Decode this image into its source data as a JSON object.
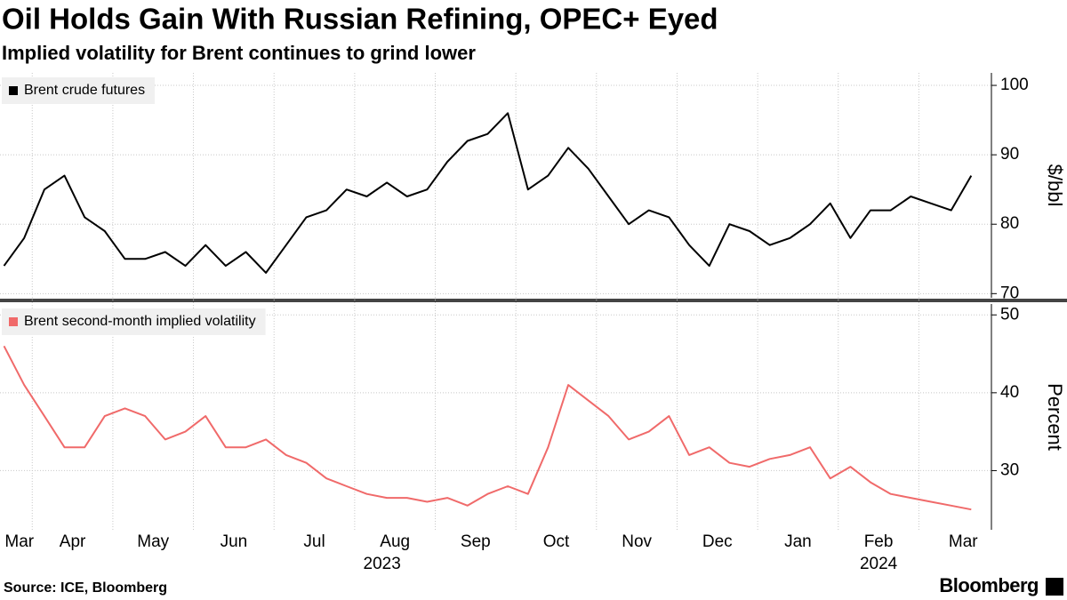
{
  "title": "Oil Holds Gain With Russian Refining, OPEC+ Eyed",
  "subtitle": "Implied volatility for Brent continues to grind lower",
  "source": "Source: ICE, Bloomberg",
  "brand": "Bloomberg",
  "x_axis": {
    "xlim": [
      0.6,
      12.9
    ],
    "xticks": [
      {
        "value": 0.84,
        "label": "Mar"
      },
      {
        "value": 1.5,
        "label": "Apr"
      },
      {
        "value": 2.5,
        "label": "May"
      },
      {
        "value": 3.5,
        "label": "Jun"
      },
      {
        "value": 4.5,
        "label": "Jul"
      },
      {
        "value": 5.5,
        "label": "Aug"
      },
      {
        "value": 6.5,
        "label": "Sep"
      },
      {
        "value": 7.5,
        "label": "Oct"
      },
      {
        "value": 8.5,
        "label": "Nov"
      },
      {
        "value": 9.5,
        "label": "Dec"
      },
      {
        "value": 10.5,
        "label": "Jan"
      },
      {
        "value": 11.5,
        "label": "Feb"
      },
      {
        "value": 12.55,
        "label": "Mar"
      }
    ],
    "years": [
      {
        "value": 5.34,
        "label": "2023"
      },
      {
        "value": 11.5,
        "label": "2024"
      }
    ],
    "xgrid": [
      1,
      2,
      3,
      4,
      5,
      6,
      7,
      8,
      9,
      10,
      11,
      12
    ]
  },
  "chart_data": [
    {
      "type": "line",
      "y_label": "$/bbl",
      "ylim": [
        69.4,
        101.8
      ],
      "yticks": [
        70,
        80,
        90,
        100
      ],
      "grid": true,
      "x": [
        0.65,
        0.9,
        1.15,
        1.4,
        1.65,
        1.9,
        2.15,
        2.4,
        2.65,
        2.9,
        3.15,
        3.4,
        3.65,
        3.9,
        4.15,
        4.4,
        4.65,
        4.9,
        5.15,
        5.4,
        5.65,
        5.9,
        6.15,
        6.4,
        6.65,
        6.9,
        7.15,
        7.4,
        7.65,
        7.9,
        8.15,
        8.4,
        8.65,
        8.9,
        9.15,
        9.4,
        9.65,
        9.9,
        10.15,
        10.4,
        10.65,
        10.9,
        11.15,
        11.4,
        11.65,
        11.9,
        12.15,
        12.4,
        12.65
      ],
      "series": [
        {
          "name": "Brent crude futures",
          "color": "#000000",
          "values": [
            74,
            78,
            85,
            87,
            81,
            79,
            75,
            75,
            76,
            74,
            77,
            74,
            76,
            73,
            77,
            81,
            82,
            85,
            84,
            86,
            84,
            85,
            89,
            92,
            93,
            96,
            85,
            87,
            91,
            88,
            84,
            80,
            82,
            81,
            77,
            74,
            80,
            79,
            77,
            78,
            80,
            83,
            78,
            82,
            82,
            84,
            83,
            82,
            87
          ]
        }
      ]
    },
    {
      "type": "line",
      "y_label": "Percent",
      "ylim": [
        22.4,
        51.4
      ],
      "yticks": [
        30,
        40,
        50
      ],
      "grid": true,
      "x": [
        0.65,
        0.9,
        1.15,
        1.4,
        1.65,
        1.9,
        2.15,
        2.4,
        2.65,
        2.9,
        3.15,
        3.4,
        3.65,
        3.9,
        4.15,
        4.4,
        4.65,
        4.9,
        5.15,
        5.4,
        5.65,
        5.9,
        6.15,
        6.4,
        6.65,
        6.9,
        7.15,
        7.4,
        7.65,
        7.9,
        8.15,
        8.4,
        8.65,
        8.9,
        9.15,
        9.4,
        9.65,
        9.9,
        10.15,
        10.4,
        10.65,
        10.9,
        11.15,
        11.4,
        11.65,
        11.9,
        12.15,
        12.4,
        12.65
      ],
      "series": [
        {
          "name": "Brent second-month implied volatility",
          "color": "#f06a6a",
          "values": [
            46,
            41,
            37,
            33,
            33,
            37,
            38,
            37,
            34,
            35,
            37,
            33,
            33,
            34,
            32,
            31,
            29,
            28,
            27,
            26.5,
            26.5,
            26,
            26.5,
            25.5,
            27,
            28,
            27,
            33,
            41,
            39,
            37,
            34,
            35,
            37,
            32,
            33,
            31,
            30.5,
            31.5,
            32,
            33,
            29,
            30.5,
            28.5,
            27,
            26.5,
            26,
            25.5,
            25
          ]
        }
      ]
    }
  ]
}
